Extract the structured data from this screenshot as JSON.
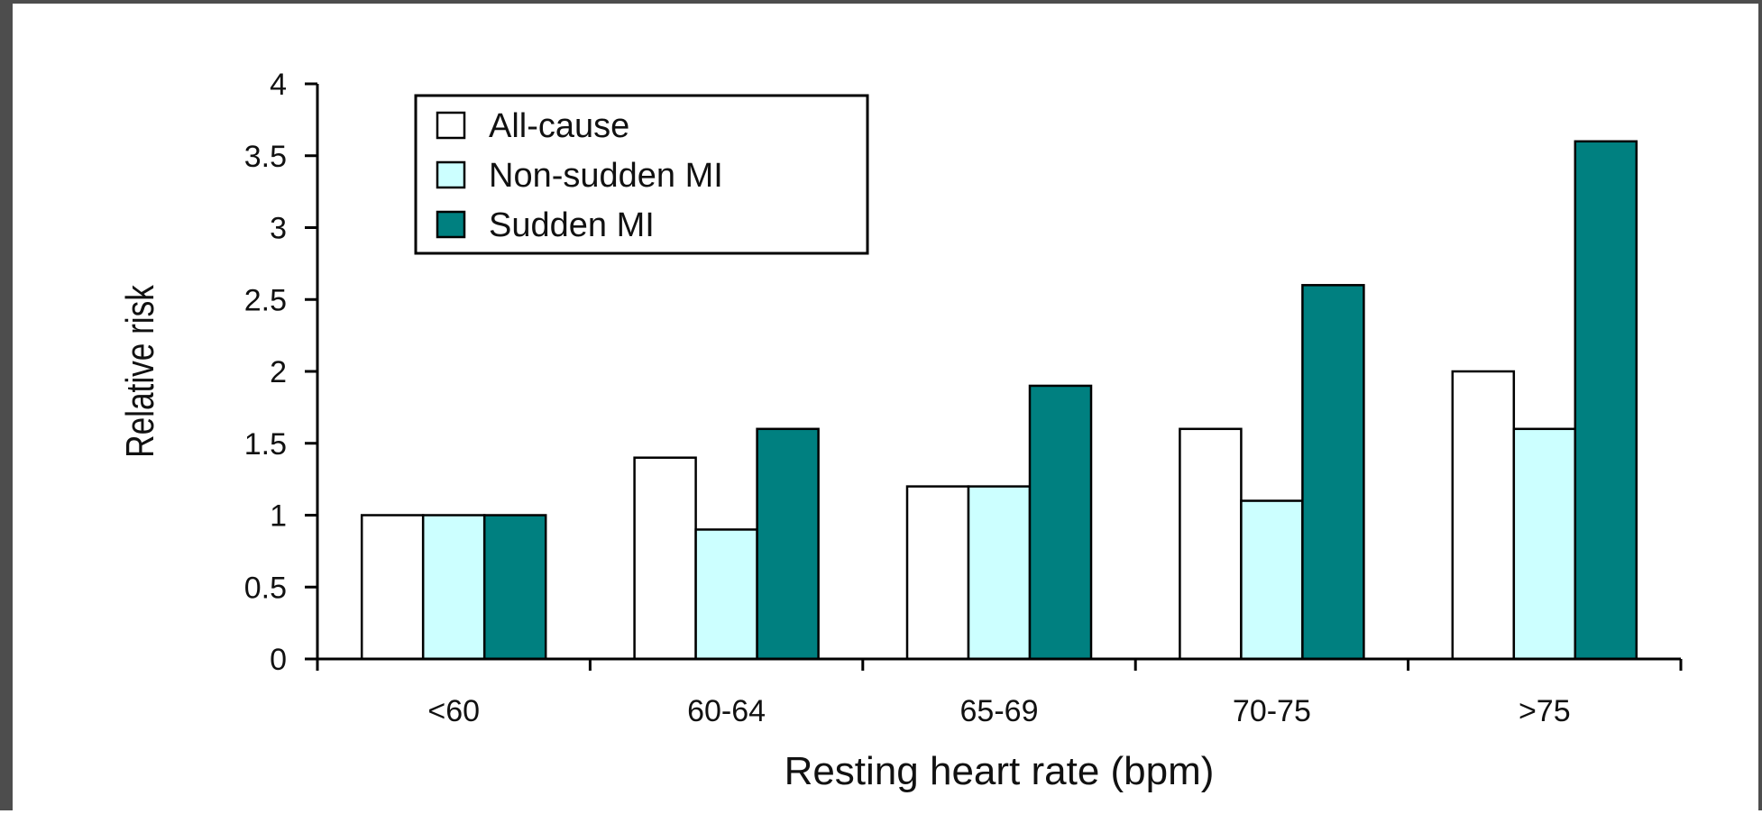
{
  "chart_data": {
    "type": "bar",
    "categories": [
      "<60",
      "60-64",
      "65-69",
      "70-75",
      ">75"
    ],
    "series": [
      {
        "name": "All-cause",
        "values": [
          1.0,
          1.4,
          1.2,
          1.6,
          2.0
        ],
        "color": "#ffffff"
      },
      {
        "name": "Non-sudden MI",
        "values": [
          1.0,
          0.9,
          1.2,
          1.1,
          1.6
        ],
        "color": "#ccffff"
      },
      {
        "name": "Sudden MI",
        "values": [
          1.0,
          1.6,
          1.9,
          2.6,
          3.6
        ],
        "color": "#008080"
      }
    ],
    "xlabel": "Resting heart rate (bpm)",
    "ylabel": "Relative risk",
    "ylim": [
      0,
      4
    ],
    "yticks": [
      "0",
      "0.5",
      "1",
      "1.5",
      "2",
      "2.5",
      "3",
      "3.5",
      "4"
    ],
    "grid": false,
    "legend_position": "top-left",
    "bar_outline_color": "#000000",
    "frame_color": "#4d4d4d"
  }
}
